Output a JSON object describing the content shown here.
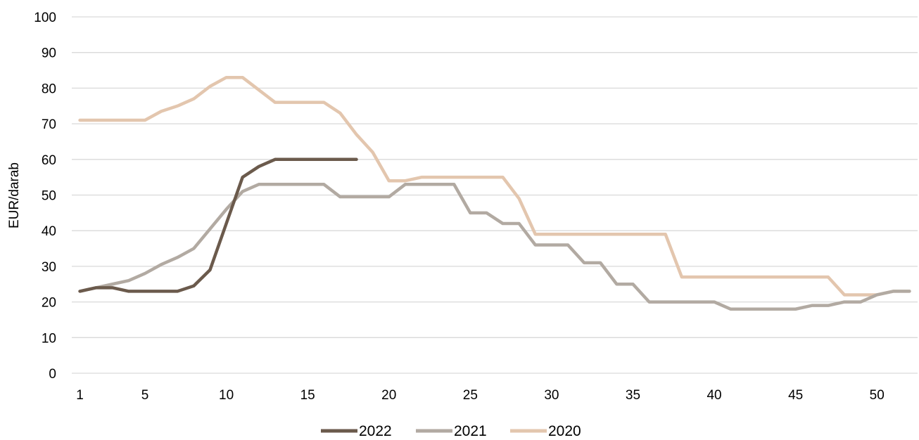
{
  "chart_data": {
    "type": "line",
    "title": "",
    "xlabel": "",
    "ylabel": "EUR/darab",
    "ylim": [
      0,
      100
    ],
    "xlim": [
      1,
      52
    ],
    "grid": true,
    "legend_position": "bottom",
    "y_ticks": [
      "0",
      "10",
      "20",
      "30",
      "40",
      "50",
      "60",
      "70",
      "80",
      "90",
      "100"
    ],
    "x_ticks": [
      "1",
      "5",
      "10",
      "15",
      "20",
      "25",
      "30",
      "35",
      "40",
      "45",
      "50"
    ],
    "series": [
      {
        "name": "2022",
        "color": "#6b5a4c",
        "x": [
          1,
          2,
          3,
          4,
          5,
          6,
          7,
          8,
          9,
          10,
          11,
          12,
          13,
          14,
          15,
          16,
          17,
          18
        ],
        "values": [
          23,
          24,
          24,
          23,
          23,
          23,
          23,
          24.5,
          29,
          42,
          55,
          58,
          60,
          60,
          60,
          60,
          60,
          60
        ]
      },
      {
        "name": "2021",
        "color": "#b2aaa2",
        "x": [
          1,
          2,
          3,
          4,
          5,
          6,
          7,
          8,
          9,
          10,
          11,
          12,
          13,
          14,
          15,
          16,
          17,
          18,
          19,
          20,
          21,
          22,
          23,
          24,
          25,
          26,
          27,
          28,
          29,
          30,
          31,
          32,
          33,
          34,
          35,
          36,
          37,
          38,
          39,
          40,
          41,
          42,
          43,
          44,
          45,
          46,
          47,
          48,
          49,
          50,
          51,
          52
        ],
        "values": [
          23,
          24,
          25,
          26,
          28,
          30.5,
          32.5,
          35,
          40.5,
          46,
          51,
          53,
          53,
          53,
          53,
          53,
          49.5,
          49.5,
          49.5,
          49.5,
          53,
          53,
          53,
          53,
          45,
          45,
          42,
          42,
          36,
          36,
          36,
          31,
          31,
          25,
          25,
          20,
          20,
          20,
          20,
          20,
          18,
          18,
          18,
          18,
          18,
          19,
          19,
          20,
          20,
          22,
          23,
          23
        ]
      },
      {
        "name": "2020",
        "color": "#e3c6ae",
        "x": [
          1,
          2,
          3,
          4,
          5,
          6,
          7,
          8,
          9,
          10,
          11,
          12,
          13,
          14,
          15,
          16,
          17,
          18,
          19,
          20,
          21,
          22,
          23,
          24,
          25,
          26,
          27,
          28,
          29,
          30,
          31,
          32,
          33,
          34,
          35,
          36,
          37,
          38,
          39,
          40,
          41,
          42,
          43,
          44,
          45,
          46,
          47,
          48,
          49,
          50,
          51,
          52
        ],
        "values": [
          71,
          71,
          71,
          71,
          71,
          73.5,
          75,
          77,
          80.5,
          83,
          83,
          79.5,
          76,
          76,
          76,
          76,
          73,
          67,
          62,
          54,
          54,
          55,
          55,
          55,
          55,
          55,
          55,
          49,
          39,
          39,
          39,
          39,
          39,
          39,
          39,
          39,
          39,
          27,
          27,
          27,
          27,
          27,
          27,
          27,
          27,
          27,
          27,
          22,
          22,
          22,
          23,
          23
        ]
      }
    ]
  }
}
